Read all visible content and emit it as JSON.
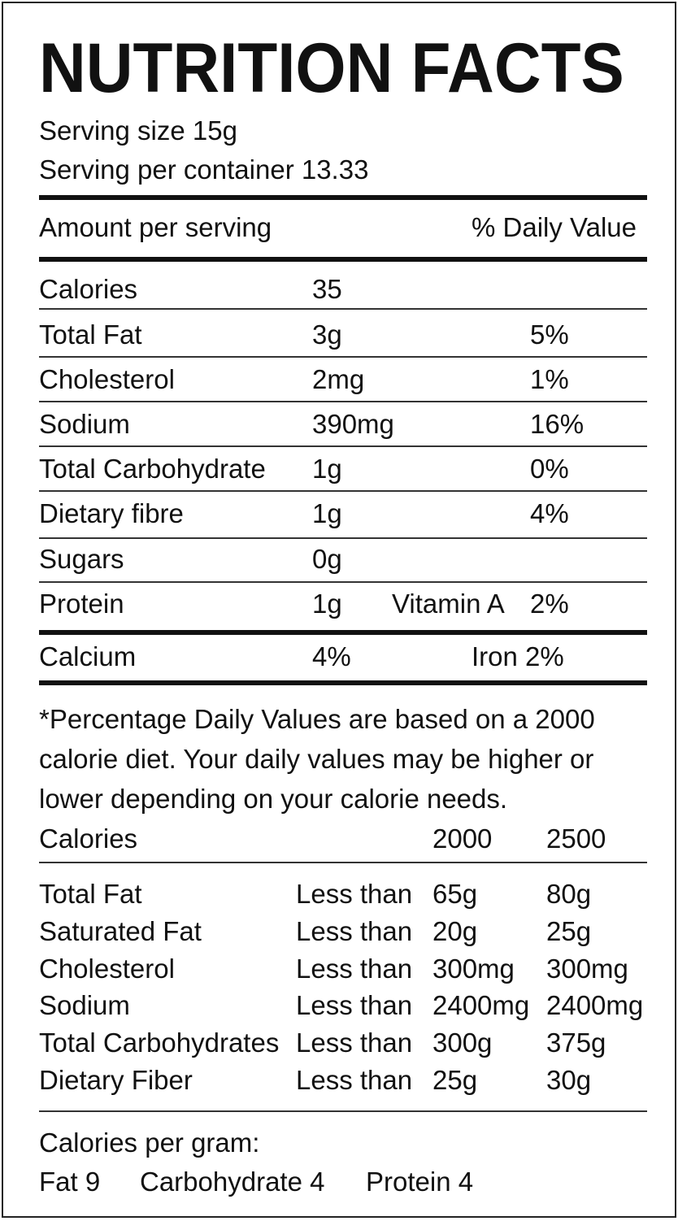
{
  "title": "NUTRITION FACTS",
  "serving": {
    "size": "Serving size 15g",
    "per_container": "Serving per container 13.33"
  },
  "header": {
    "amount": "Amount per serving",
    "daily_value": "% Daily Value"
  },
  "nutrients": [
    {
      "name": "Calories",
      "amount": "35",
      "dv": ""
    },
    {
      "name": "Total Fat",
      "amount": "3g",
      "dv": "5%"
    },
    {
      "name": "Cholesterol",
      "amount": "2mg",
      "dv": "1%"
    },
    {
      "name": "Sodium",
      "amount": "390mg",
      "dv": "16%"
    },
    {
      "name": "Total Carbohydrate",
      "amount": "1g",
      "dv": "0%"
    },
    {
      "name": "Dietary fibre",
      "amount": "1g",
      "dv": "4%"
    },
    {
      "name": "Sugars",
      "amount": "0g",
      "dv": ""
    },
    {
      "name": "Protein",
      "amount": "1g",
      "extra": "Vitamin A",
      "dv": "2%"
    }
  ],
  "minerals": {
    "name": "Calcium",
    "value": "4%",
    "iron": "Iron 2%"
  },
  "footnote": [
    "*Percentage Daily Values are based on a 2000",
    "calorie diet. Your daily values may be higher or",
    "lower depending on your calorie needs."
  ],
  "reference": {
    "header": {
      "label": "Calories",
      "c2000": "2000",
      "c2500": "2500"
    },
    "rows": [
      {
        "name": "Total Fat",
        "qualifier": "Less than",
        "c2000": "65g",
        "c2500": "80g"
      },
      {
        "name": "Saturated Fat",
        "qualifier": "Less than",
        "c2000": "20g",
        "c2500": "25g"
      },
      {
        "name": "Cholesterol",
        "qualifier": "Less than",
        "c2000": "300mg",
        "c2500": "300mg"
      },
      {
        "name": "Sodium",
        "qualifier": "Less than",
        "c2000": "2400mg",
        "c2500": "2400mg"
      },
      {
        "name": "Total Carbohydrates",
        "qualifier": "Less than",
        "c2000": "300g",
        "c2500": "375g"
      },
      {
        "name": "Dietary Fiber",
        "qualifier": "Less than",
        "c2000": "25g",
        "c2500": "30g"
      }
    ]
  },
  "per_gram": {
    "label": "Calories per gram:",
    "fat": "Fat 9",
    "carbohydrate": "Carbohydrate 4",
    "protein": "Protein 4"
  }
}
